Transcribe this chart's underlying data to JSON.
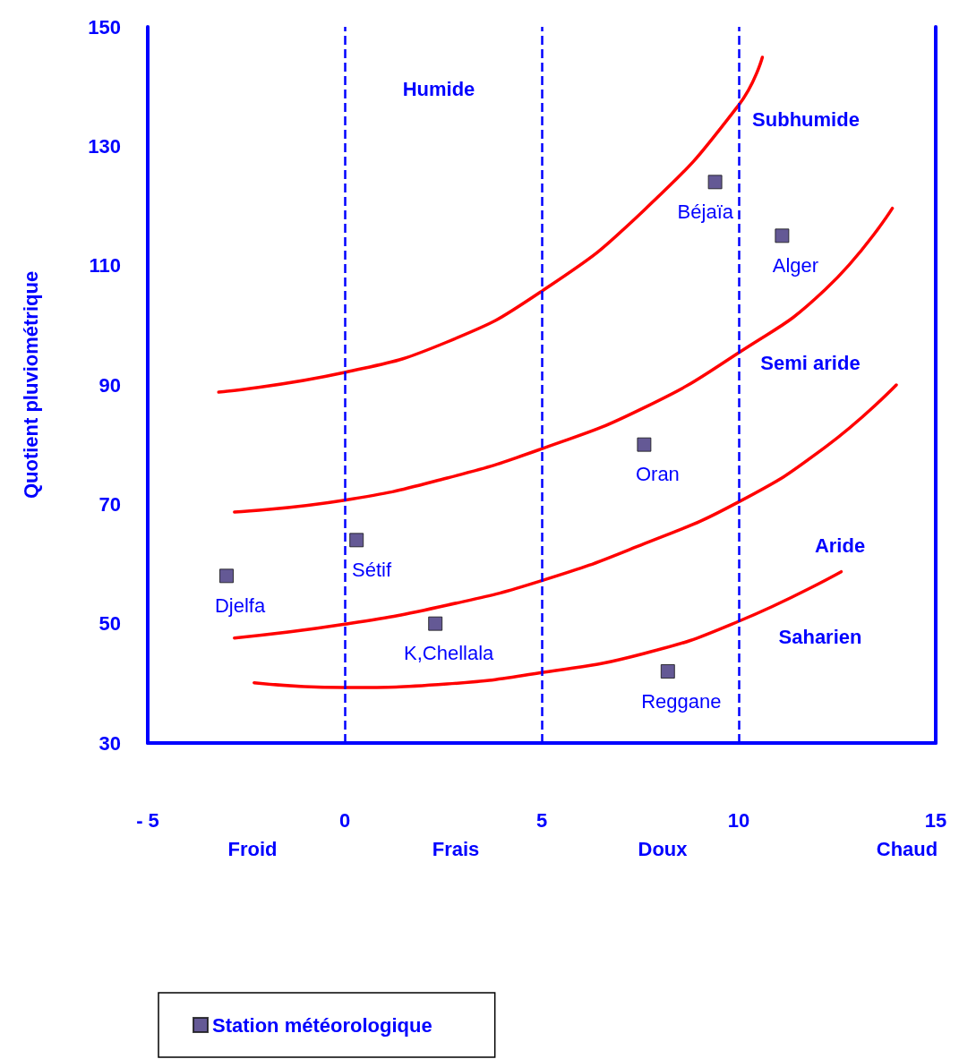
{
  "chart_data": {
    "type": "scatter",
    "ylabel": "Quotient pluviométrique",
    "xlim": [
      -5,
      15
    ],
    "xticks": [
      {
        "value": -5,
        "label": "- 5"
      },
      0,
      5,
      10,
      15
    ],
    "ylim": [
      30,
      150
    ],
    "yticks": [
      30,
      50,
      70,
      90,
      110,
      130,
      150
    ],
    "grid": false,
    "legend": "bottom",
    "marker": "square",
    "series": [
      {
        "name": "Station météorologique",
        "color": "#3d2f7a",
        "x": [
          -3.0,
          0.3,
          2.3,
          7.6,
          8.2,
          9.4,
          11.1
        ],
        "values": [
          58,
          64,
          50,
          80,
          42,
          124,
          115
        ]
      },
      {
        "type": "line",
        "color": "#ff0000",
        "line_style": "solid",
        "marker": "none",
        "x": [
          -3.2,
          0,
          2.6,
          5,
          7.6,
          10,
          10.6
        ],
        "values": [
          88.8,
          92.1,
          97.2,
          105.7,
          119.3,
          136.9,
          144.9
        ]
      },
      {
        "type": "line",
        "color": "#ff0000",
        "line_style": "solid",
        "marker": "none",
        "x": [
          -2.8,
          0,
          2.6,
          5,
          7.6,
          10,
          12.2,
          13.9
        ],
        "values": [
          68.7,
          70.7,
          74.4,
          79.3,
          86.2,
          95.4,
          106,
          119.6
        ]
      },
      {
        "type": "line",
        "color": "#ff0000",
        "line_style": "solid",
        "marker": "none",
        "x": [
          -2.8,
          0,
          2.6,
          5,
          7.6,
          10,
          12.2,
          14
        ],
        "values": [
          47.6,
          49.9,
          53.1,
          57.2,
          63.4,
          70.4,
          79.6,
          90
        ]
      },
      {
        "type": "line",
        "color": "#ff0000",
        "line_style": "solid",
        "marker": "none",
        "x": [
          -2.3,
          0,
          2.6,
          5,
          7.6,
          10,
          12.6
        ],
        "values": [
          40.1,
          39.3,
          39.9,
          41.8,
          45,
          50.4,
          58.7
        ]
      }
    ],
    "ref_lines": [
      {
        "axis": "x",
        "value": 0,
        "color": "#0000ff",
        "line_style": "dashed"
      },
      {
        "axis": "x",
        "value": 5,
        "color": "#0000ff",
        "line_style": "dashed"
      },
      {
        "axis": "x",
        "value": 10,
        "color": "#0000ff",
        "line_style": "dashed"
      }
    ],
    "annotations": [
      {
        "text": "Djelfa",
        "x": -3.0,
        "y": 58
      },
      {
        "text": "Sétif",
        "x": 0.3,
        "y": 64
      },
      {
        "text": "K,Chellala",
        "x": 2.3,
        "y": 50
      },
      {
        "text": "Oran",
        "x": 7.6,
        "y": 80
      },
      {
        "text": "Reggane",
        "x": 8.2,
        "y": 42
      },
      {
        "text": "Béjaïa",
        "x": 9.4,
        "y": 124
      },
      {
        "text": "Alger",
        "x": 11.1,
        "y": 115
      },
      "Humide",
      "Subhumide",
      "Semi aride",
      "Aride",
      "Saharien",
      "Froid",
      "Frais",
      "Doux",
      "Chaud"
    ]
  }
}
